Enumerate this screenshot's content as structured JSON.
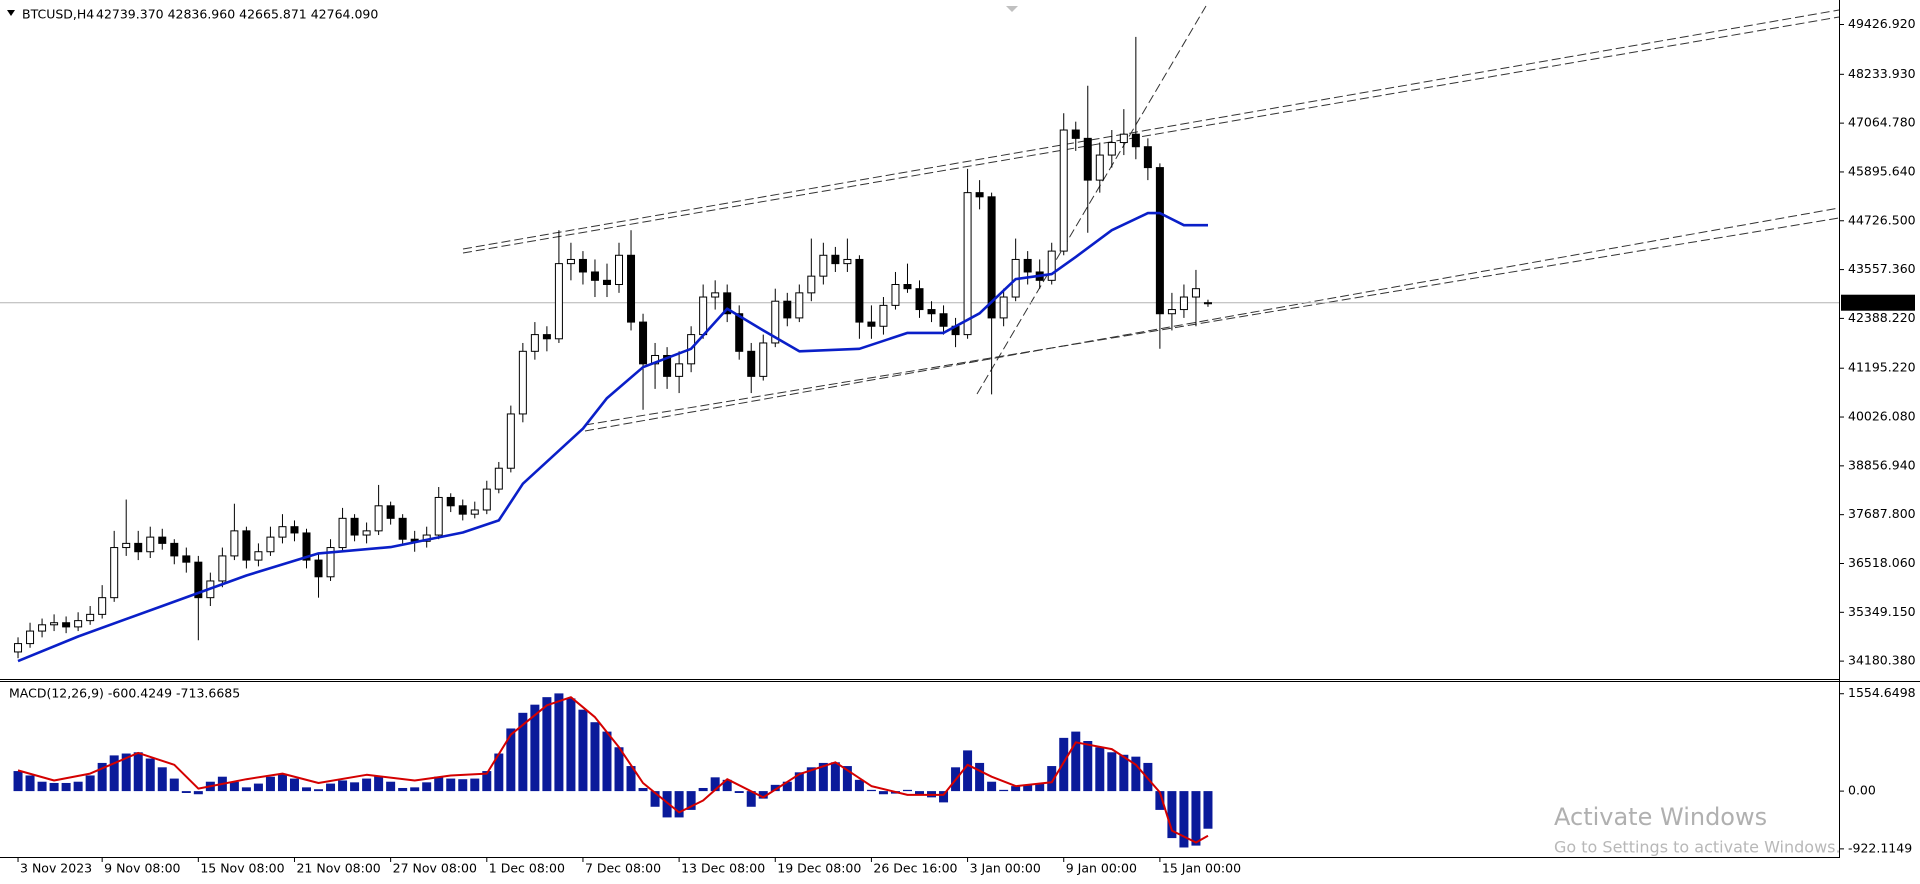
{
  "chart_data": [
    {
      "type": "candlestick",
      "title": "BTCUSD,H4",
      "subtitle": "42739.370 42836.960 42665.871 42764.090",
      "xlim": [
        -1.5,
        151.5
      ],
      "xticks": [
        {
          "value": 0,
          "label": "3 Nov 2023"
        },
        {
          "value": 7,
          "label": "9 Nov 08:00"
        },
        {
          "value": 15,
          "label": "15 Nov 08:00"
        },
        {
          "value": 23,
          "label": "21 Nov 08:00"
        },
        {
          "value": 31,
          "label": "27 Nov 08:00"
        },
        {
          "value": 39,
          "label": "1 Dec 08:00"
        },
        {
          "value": 47,
          "label": "7 Dec 08:00"
        },
        {
          "value": 55,
          "label": "13 Dec 08:00"
        },
        {
          "value": 63,
          "label": "19 Dec 08:00"
        },
        {
          "value": 71,
          "label": "26 Dec 16:00"
        },
        {
          "value": 79,
          "label": "3 Jan 00:00"
        },
        {
          "value": 87,
          "label": "9 Jan 00:00"
        },
        {
          "value": 95,
          "label": "15 Jan 00:00"
        }
      ],
      "ylim": [
        33800,
        49870
      ],
      "yticks": [
        {
          "value": 34180.38,
          "label": "34180.380"
        },
        {
          "value": 35349.15,
          "label": "35349.150"
        },
        {
          "value": 36518.06,
          "label": "36518.060"
        },
        {
          "value": 37687.8,
          "label": "37687.800"
        },
        {
          "value": 38856.94,
          "label": "38856.940"
        },
        {
          "value": 40026.08,
          "label": "40026.080"
        },
        {
          "value": 41195.22,
          "label": "41195.220"
        },
        {
          "value": 42388.22,
          "label": "42388.220"
        },
        {
          "value": 43557.36,
          "label": "43557.360"
        },
        {
          "value": 44726.5,
          "label": "44726.500"
        },
        {
          "value": 45895.64,
          "label": "45895.640"
        },
        {
          "value": 47064.78,
          "label": "47064.780"
        },
        {
          "value": 48233.93,
          "label": "48233.930"
        },
        {
          "value": 49426.92,
          "label": "49426.920"
        }
      ],
      "current_price": {
        "value": 42764.09,
        "label": "42764.090"
      },
      "open": [
        34400,
        34600,
        34900,
        35050,
        35100,
        35000,
        35150,
        35300,
        35700,
        36900,
        37000,
        36800,
        37150,
        37000,
        36700,
        36550,
        35700,
        36100,
        36700,
        37300,
        36600,
        36800,
        37150,
        37400,
        37250,
        36600,
        36200,
        36900,
        37600,
        37200,
        37300,
        37900,
        37600,
        37100,
        37050,
        37200,
        38100,
        37900,
        37700,
        37800,
        38300,
        38800,
        40100,
        41600,
        42000,
        41900,
        43700,
        43800,
        43500,
        43300,
        43200,
        43900,
        42300,
        41300,
        41500,
        41000,
        41300,
        42000,
        42900,
        43000,
        42500,
        41600,
        41000,
        41800,
        42800,
        42400,
        43000,
        43400,
        43900,
        43700,
        43800,
        42300,
        42200,
        42700,
        43200,
        43100,
        42600,
        42500,
        42200,
        42000,
        45400,
        45300,
        42400,
        42900,
        43800,
        43500,
        43300,
        44000,
        46900,
        46700,
        45700,
        46300,
        46600,
        46800,
        46500,
        46000,
        42500,
        42600,
        42900,
        42739.37
      ],
      "high": [
        34750,
        35100,
        35200,
        35300,
        35250,
        35350,
        35500,
        36000,
        37300,
        38050,
        37300,
        37400,
        37350,
        37100,
        36900,
        36700,
        36300,
        36900,
        37950,
        37400,
        37000,
        37400,
        37700,
        37550,
        37350,
        36750,
        37100,
        37850,
        37700,
        37500,
        38400,
        38000,
        37700,
        37300,
        37400,
        38350,
        38200,
        38050,
        38000,
        38500,
        38950,
        40300,
        41800,
        42300,
        42200,
        44500,
        44200,
        44000,
        43800,
        43700,
        44200,
        44500,
        42500,
        41800,
        41700,
        41600,
        42200,
        43200,
        43300,
        43200,
        42700,
        41800,
        42000,
        43100,
        43000,
        43200,
        44300,
        44200,
        44100,
        44300,
        43900,
        42700,
        42900,
        43500,
        43700,
        43300,
        42800,
        42700,
        42400,
        45970,
        45700,
        45400,
        43100,
        44300,
        44000,
        43800,
        44200,
        47300,
        47100,
        47960,
        46600,
        46900,
        47400,
        49130,
        46700,
        46100,
        43000,
        43200,
        43550,
        42836.96
      ],
      "low": [
        34250,
        34500,
        34750,
        34900,
        34850,
        34900,
        35050,
        35200,
        35600,
        36700,
        36600,
        36650,
        36850,
        36500,
        36300,
        34680,
        35500,
        35950,
        36600,
        36400,
        36450,
        36700,
        37000,
        37050,
        36400,
        35700,
        36100,
        36800,
        37050,
        37000,
        37200,
        37450,
        36950,
        36800,
        36900,
        37100,
        37750,
        37550,
        37600,
        37700,
        38200,
        38700,
        39900,
        41400,
        41600,
        41800,
        43300,
        43200,
        42900,
        42900,
        43000,
        42100,
        40200,
        40700,
        40700,
        40600,
        41100,
        41900,
        42600,
        42300,
        41400,
        40600,
        40900,
        41700,
        42200,
        42300,
        42800,
        43200,
        43500,
        43500,
        41900,
        41900,
        42000,
        42600,
        43000,
        42400,
        42300,
        42000,
        41700,
        41900,
        45000,
        40570,
        42200,
        42800,
        43200,
        43100,
        43200,
        43900,
        46400,
        44440,
        45400,
        46000,
        46300,
        46200,
        45700,
        41660,
        42100,
        42400,
        42200,
        42665.871
      ],
      "close": [
        34600,
        34900,
        35050,
        35100,
        35000,
        35150,
        35300,
        35700,
        36900,
        37000,
        36800,
        37150,
        37000,
        36700,
        36550,
        35700,
        36100,
        36700,
        37300,
        36600,
        36800,
        37150,
        37400,
        37250,
        36600,
        36200,
        36900,
        37600,
        37200,
        37300,
        37900,
        37600,
        37100,
        37050,
        37200,
        38100,
        37900,
        37700,
        37800,
        38300,
        38800,
        40100,
        41600,
        42000,
        41900,
        43700,
        43800,
        43500,
        43300,
        43200,
        43900,
        42300,
        41300,
        41500,
        41000,
        41300,
        42000,
        42900,
        43000,
        42500,
        41600,
        41000,
        41800,
        42800,
        42400,
        43000,
        43400,
        43900,
        43700,
        43800,
        42300,
        42200,
        42700,
        43200,
        43100,
        42600,
        42500,
        42200,
        42000,
        45400,
        45300,
        42400,
        42900,
        43800,
        43500,
        43300,
        44000,
        46900,
        46700,
        45700,
        46300,
        46600,
        46800,
        46500,
        46000,
        42500,
        42600,
        42900,
        43100,
        42764.09
      ],
      "overlays": [
        {
          "type": "line",
          "color": "#0a1fc8",
          "x": [
            0,
            5,
            12,
            19,
            25,
            31,
            37,
            40,
            42,
            47,
            49,
            52,
            56,
            59,
            62,
            65,
            70,
            74,
            77,
            80,
            83,
            86,
            88,
            91,
            94,
            95,
            97,
            99
          ],
          "values": [
            34180,
            34770,
            35500,
            36230,
            36760,
            36910,
            37260,
            37550,
            38430,
            39750,
            40480,
            41220,
            41660,
            42620,
            42100,
            41600,
            41660,
            42040,
            42040,
            42510,
            43330,
            43450,
            43860,
            44500,
            44910,
            44910,
            44620,
            44620
          ]
        }
      ]
    },
    {
      "type": "macd",
      "title": "MACD(12,26,9) -600.4249 -713.6685",
      "ylim": [
        -1020,
        1710
      ],
      "yticks": [
        {
          "value": 1554.6498,
          "label": "1554.6498"
        },
        {
          "value": 0,
          "label": "0.00"
        },
        {
          "value": -922.1149,
          "label": "-922.1149"
        }
      ],
      "histogram": {
        "color": "#0a1a9a",
        "values": [
          320,
          250,
          150,
          130,
          130,
          150,
          250,
          450,
          570,
          600,
          620,
          520,
          380,
          200,
          -30,
          -50,
          150,
          230,
          150,
          60,
          120,
          230,
          270,
          200,
          60,
          30,
          120,
          170,
          140,
          200,
          240,
          150,
          50,
          60,
          140,
          230,
          200,
          190,
          200,
          320,
          600,
          1000,
          1250,
          1380,
          1500,
          1560,
          1480,
          1300,
          1100,
          950,
          700,
          400,
          50,
          -250,
          -420,
          -420,
          -300,
          50,
          220,
          180,
          -30,
          -250,
          -120,
          100,
          150,
          300,
          380,
          450,
          460,
          400,
          180,
          20,
          -50,
          -40,
          20,
          -60,
          -100,
          -180,
          380,
          650,
          450,
          150,
          20,
          80,
          100,
          120,
          400,
          850,
          950,
          800,
          700,
          620,
          580,
          550,
          450,
          -300,
          -750,
          -900,
          -870,
          -600.4249
        ]
      },
      "signal": {
        "color": "#d40000",
        "x": [
          0,
          3,
          6,
          10,
          13,
          15,
          19,
          22,
          25,
          29,
          33,
          36,
          39,
          41,
          44,
          46,
          48,
          50,
          52,
          55,
          57,
          59,
          62,
          65,
          68,
          71,
          74,
          77,
          79,
          81,
          83,
          86,
          88,
          91,
          93,
          95,
          96,
          98,
          99
        ],
        "values": [
          330,
          170,
          280,
          610,
          420,
          40,
          190,
          280,
          130,
          260,
          170,
          250,
          280,
          900,
          1370,
          1500,
          1180,
          700,
          130,
          -340,
          -150,
          190,
          -100,
          270,
          460,
          80,
          -60,
          -60,
          420,
          230,
          80,
          140,
          780,
          670,
          420,
          -20,
          -630,
          -820,
          -713.6685
        ]
      }
    }
  ],
  "watermark": {
    "title": "Activate Windows",
    "text": "Go to Settings to activate Windows."
  }
}
